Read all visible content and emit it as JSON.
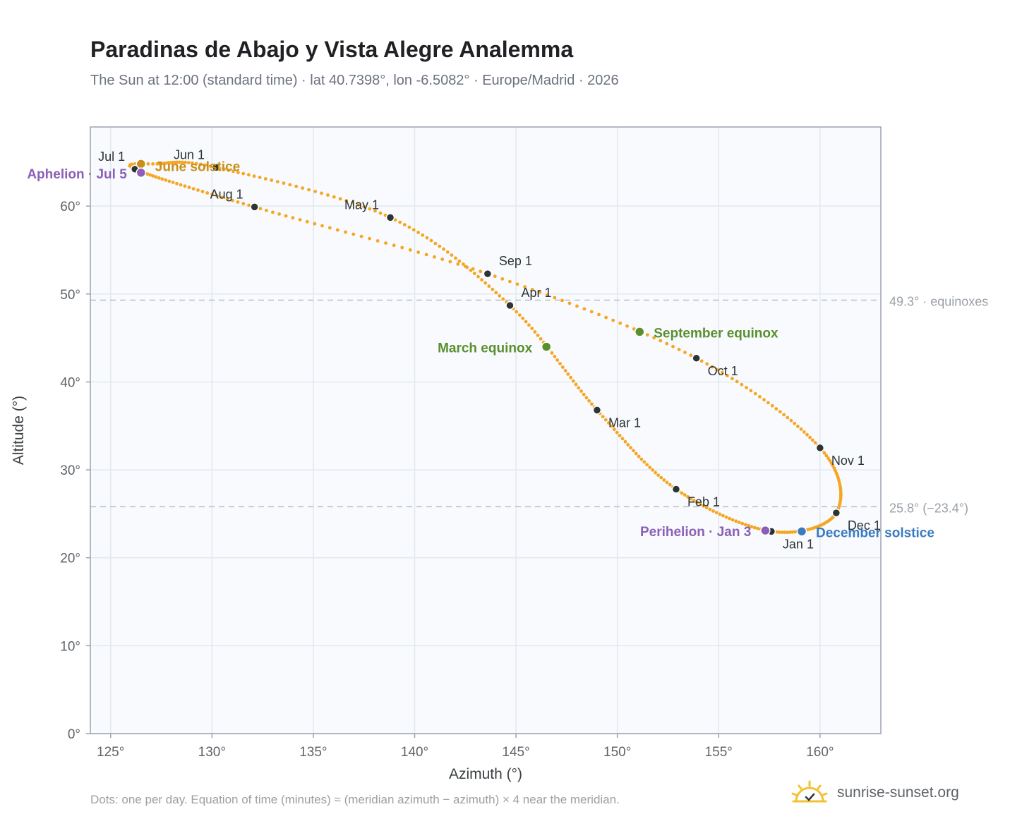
{
  "title": "Paradinas de Abajo y Vista Alegre Analemma",
  "subtitle": "The Sun at 12:00 (standard time) · lat 40.7398°, lon -6.5082° · Europe/Madrid · 2026",
  "footnote": "Dots: one per day. Equation of time (minutes) ≈ (meridian azimuth − azimuth) × 4 near the meridian.",
  "brand": {
    "name": "sunrise-sunset.org",
    "icon": "sun-logo-icon"
  },
  "colors": {
    "curve": "#f5a623",
    "month_marker": "#2d3436",
    "solstice_june": "#c8901a",
    "solstice_december": "#3a7bbf",
    "equinox": "#5a8f2e",
    "apsis": "#8b5fb8",
    "reference_line": "#b8bec6",
    "plot_background": "#f8fafd",
    "grid": "#e3e8ee"
  },
  "chart_data": {
    "type": "scatter",
    "xlabel": "Azimuth (°)",
    "ylabel": "Altitude (°)",
    "xlim": [
      124,
      163
    ],
    "ylim": [
      0,
      69
    ],
    "xticks": [
      125,
      130,
      135,
      140,
      145,
      150,
      155,
      160
    ],
    "yticks": [
      0,
      10,
      20,
      30,
      40,
      50,
      60
    ],
    "x_tick_labels": [
      "125°",
      "130°",
      "135°",
      "140°",
      "145°",
      "150°",
      "155°",
      "160°"
    ],
    "y_tick_labels": [
      "0°",
      "10°",
      "20°",
      "30°",
      "40°",
      "50°",
      "60°"
    ],
    "grid": true,
    "reference_lines": [
      {
        "y": 49.3,
        "label": "49.3° · equinoxes"
      },
      {
        "y": 25.8,
        "label": "25.8° (−23.4°)"
      }
    ],
    "month_markers": [
      {
        "label": "Jan 1",
        "azimuth": 157.6,
        "altitude": 23.0
      },
      {
        "label": "Feb 1",
        "azimuth": 152.9,
        "altitude": 27.8
      },
      {
        "label": "Mar 1",
        "azimuth": 149.0,
        "altitude": 36.8
      },
      {
        "label": "Apr 1",
        "azimuth": 144.7,
        "altitude": 48.7
      },
      {
        "label": "May 1",
        "azimuth": 138.8,
        "altitude": 58.7
      },
      {
        "label": "Jun 1",
        "azimuth": 130.2,
        "altitude": 64.4
      },
      {
        "label": "Jul 1",
        "azimuth": 126.2,
        "altitude": 64.2
      },
      {
        "label": "Aug 1",
        "azimuth": 132.1,
        "altitude": 59.9
      },
      {
        "label": "Sep 1",
        "azimuth": 143.6,
        "altitude": 52.3
      },
      {
        "label": "Oct 1",
        "azimuth": 153.9,
        "altitude": 42.7
      },
      {
        "label": "Nov 1",
        "azimuth": 160.0,
        "altitude": 32.5
      },
      {
        "label": "Dec 1",
        "azimuth": 160.8,
        "altitude": 25.1
      }
    ],
    "events": [
      {
        "label": "June solstice",
        "azimuth": 126.5,
        "altitude": 64.8,
        "color": "#c8901a"
      },
      {
        "label": "December solstice",
        "azimuth": 159.1,
        "altitude": 23.0,
        "color": "#3a7bbf"
      },
      {
        "label": "March equinox",
        "azimuth": 146.5,
        "altitude": 44.0,
        "color": "#5a8f2e"
      },
      {
        "label": "September equinox",
        "azimuth": 151.1,
        "altitude": 45.7,
        "color": "#5a8f2e"
      },
      {
        "label": "Aphelion · Jul 5",
        "azimuth": 126.5,
        "altitude": 63.8,
        "color": "#8b5fb8"
      },
      {
        "label": "Perihelion · Jan 3",
        "azimuth": 157.3,
        "altitude": 23.1,
        "color": "#8b5fb8"
      }
    ]
  }
}
